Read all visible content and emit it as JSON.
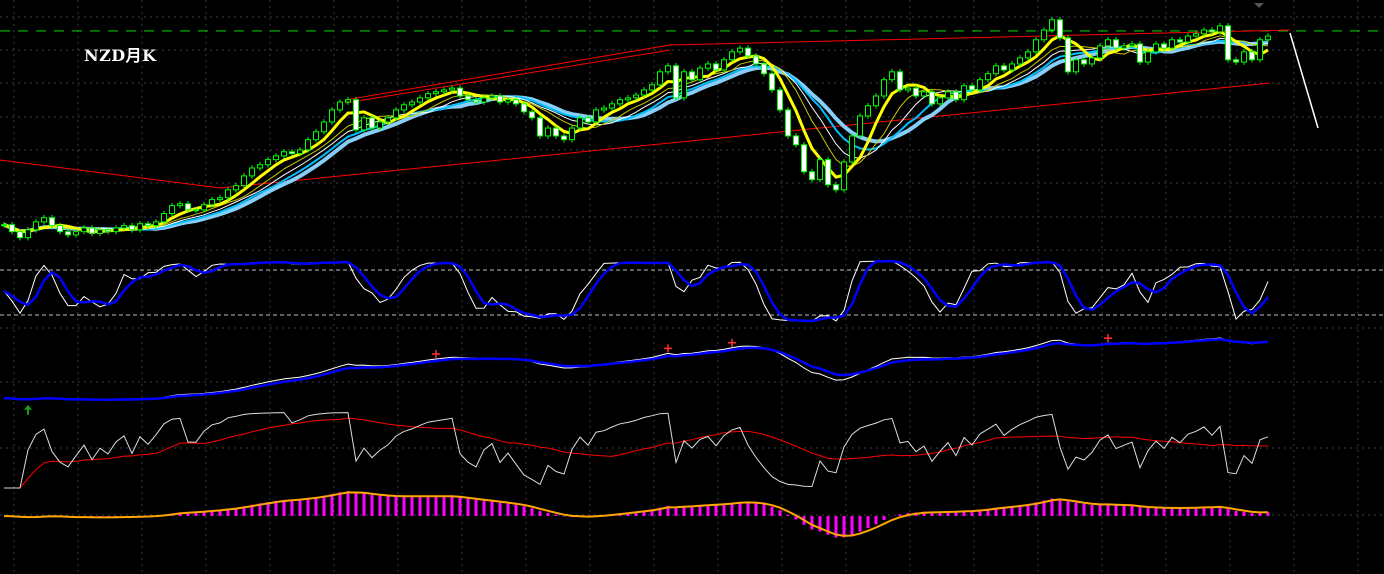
{
  "header": {
    "title": "NZD月K"
  },
  "colors": {
    "background": "#000000",
    "candle": "#00ff00",
    "down_fill": "#ffffff",
    "ma_fast": "#ffff00",
    "ma_bands": [
      "#ffffff",
      "#00bfff",
      "#87cefa"
    ],
    "channel": "#ff0000",
    "reference_line": "#00c000",
    "stoch_k": "#ffffff",
    "stoch_d": "#0000ff",
    "rsi": "#ffffff",
    "rsi_ma": "#ff0000",
    "macd_bar": "#ff00ff",
    "macd_line": "#ffa500"
  },
  "chart_data": {
    "type": "candlestick",
    "title": "NZD月K",
    "period": "monthly",
    "grid": true,
    "ylim": [
      0.4,
      0.88
    ],
    "reference_level": 0.85,
    "closes": [
      0.433,
      0.418,
      0.405,
      0.422,
      0.439,
      0.448,
      0.431,
      0.418,
      0.411,
      0.418,
      0.426,
      0.414,
      0.422,
      0.418,
      0.426,
      0.431,
      0.422,
      0.435,
      0.431,
      0.439,
      0.457,
      0.474,
      0.478,
      0.465,
      0.465,
      0.476,
      0.487,
      0.491,
      0.508,
      0.517,
      0.538,
      0.555,
      0.562,
      0.573,
      0.581,
      0.59,
      0.586,
      0.594,
      0.616,
      0.633,
      0.654,
      0.68,
      0.697,
      0.702,
      0.637,
      0.663,
      0.641,
      0.654,
      0.663,
      0.68,
      0.691,
      0.697,
      0.706,
      0.715,
      0.719,
      0.723,
      0.727,
      0.71,
      0.702,
      0.697,
      0.706,
      0.71,
      0.697,
      0.702,
      0.693,
      0.676,
      0.663,
      0.624,
      0.641,
      0.624,
      0.616,
      0.641,
      0.663,
      0.654,
      0.68,
      0.684,
      0.693,
      0.702,
      0.706,
      0.712,
      0.723,
      0.734,
      0.762,
      0.775,
      0.706,
      0.762,
      0.745,
      0.77,
      0.779,
      0.766,
      0.788,
      0.805,
      0.813,
      0.796,
      0.779,
      0.758,
      0.723,
      0.68,
      0.624,
      0.605,
      0.547,
      0.53,
      0.573,
      0.519,
      0.508,
      0.568,
      0.624,
      0.667,
      0.689,
      0.71,
      0.745,
      0.762,
      0.723,
      0.727,
      0.71,
      0.719,
      0.693,
      0.706,
      0.719,
      0.702,
      0.732,
      0.723,
      0.745,
      0.758,
      0.775,
      0.766,
      0.779,
      0.792,
      0.805,
      0.831,
      0.852,
      0.874,
      0.835,
      0.762,
      0.788,
      0.779,
      0.792,
      0.818,
      0.831,
      0.813,
      0.818,
      0.822,
      0.783,
      0.805,
      0.822,
      0.813,
      0.831,
      0.826,
      0.839,
      0.844,
      0.852,
      0.848,
      0.861,
      0.788,
      0.783,
      0.805,
      0.788,
      0.831,
      0.839
    ],
    "signals": {
      "sell": [
        54,
        83,
        91,
        138
      ],
      "buy": [
        3
      ]
    },
    "indicators": [
      "stochastic",
      "moving-average-pair",
      "rsi",
      "macd"
    ],
    "stochastic_levels": [
      80,
      20
    ]
  }
}
